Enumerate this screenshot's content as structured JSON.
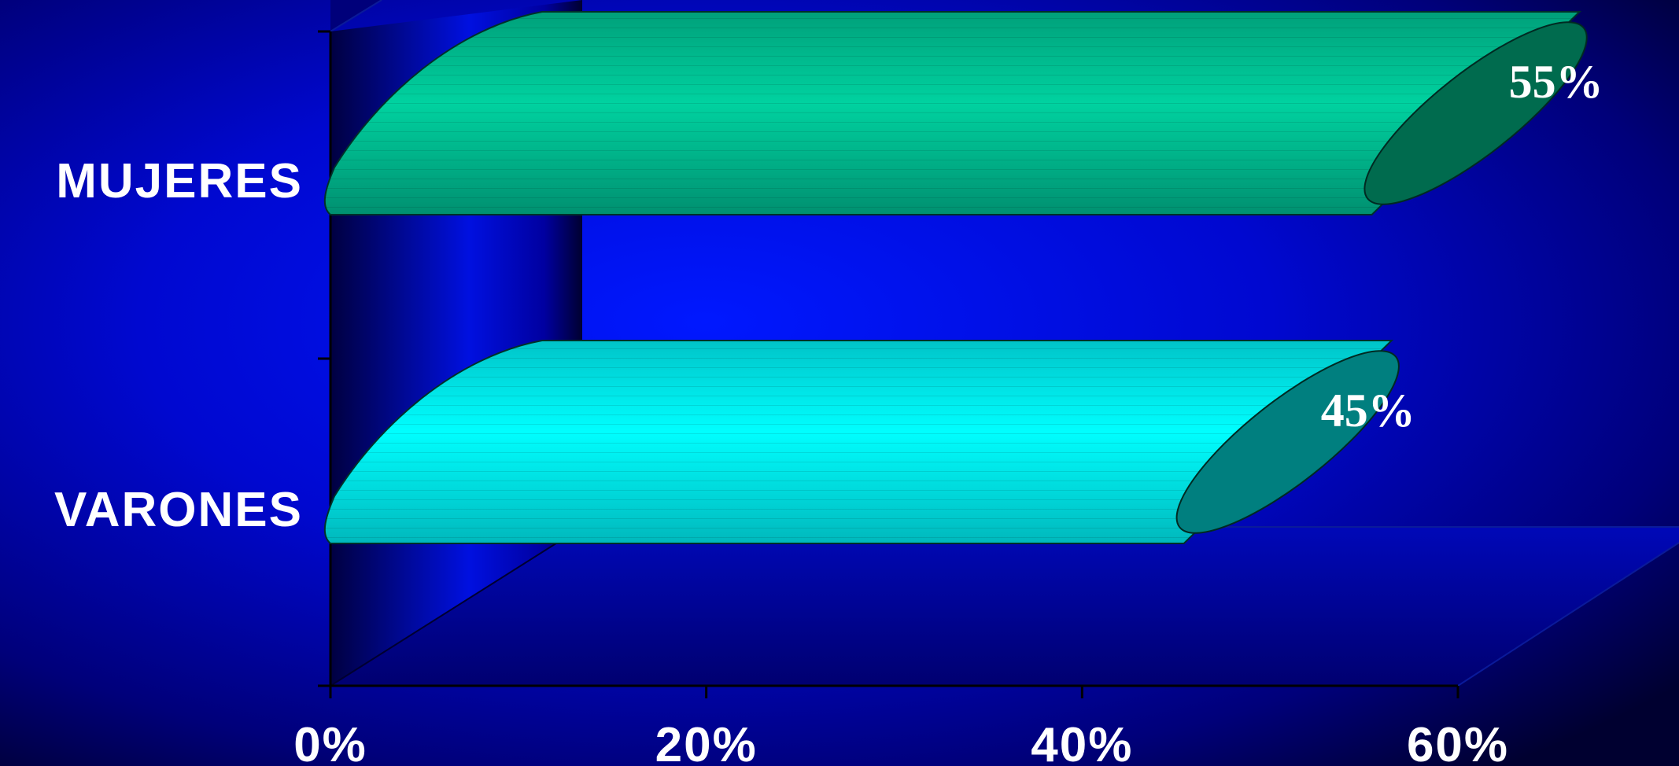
{
  "chart_data": {
    "type": "bar",
    "orientation": "horizontal",
    "style": "3d-cylinder",
    "categories": [
      "MUJERES",
      "VARONES"
    ],
    "values": [
      55,
      45
    ],
    "data_labels": [
      "55%",
      "45%"
    ],
    "x_ticks": [
      "0%",
      "20%",
      "40%",
      "60%"
    ],
    "xlim": [
      0,
      60
    ],
    "title": "",
    "xlabel": "",
    "ylabel": "",
    "grid": false,
    "legend": "none",
    "colors": {
      "background": "#0010e8",
      "bar_mujeres": "#00c896",
      "cap_mujeres": "#006b4e",
      "bar_varones": "#00f0f0",
      "cap_varones": "#007f7f"
    }
  }
}
